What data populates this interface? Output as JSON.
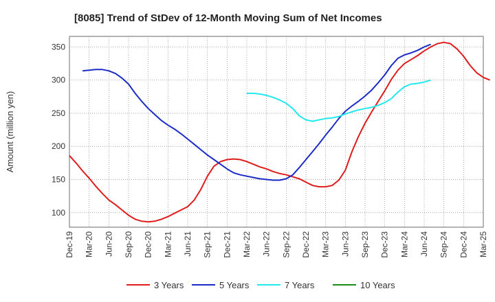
{
  "chart_data": {
    "type": "line",
    "title": "[8085]  Trend of StDev of 12-Month Moving Sum of Net Incomes",
    "ylabel": "Amount (million yen)",
    "xlabel": "",
    "ylim": [
      78,
      366
    ],
    "yticks": [
      100,
      150,
      200,
      250,
      300,
      350
    ],
    "xticks": [
      "Dec-19",
      "Mar-20",
      "Jun-20",
      "Sep-20",
      "Dec-20",
      "Mar-21",
      "Jun-21",
      "Sep-21",
      "Dec-21",
      "Mar-22",
      "Jun-22",
      "Sep-22",
      "Dec-22",
      "Mar-23",
      "Jun-23",
      "Sep-23",
      "Dec-23",
      "Mar-24",
      "Jun-24",
      "Sep-24",
      "Dec-24",
      "Mar-25"
    ],
    "grid": true,
    "legend_position": "bottom",
    "series": [
      {
        "name": "3 Years",
        "color": "#e01b1b",
        "start_index": 0,
        "values": [
          186,
          175,
          163,
          152,
          140,
          129,
          119,
          112,
          104,
          96,
          90,
          87,
          86,
          87,
          90,
          94,
          99,
          104,
          109,
          119,
          135,
          155,
          170,
          177,
          180,
          181,
          180,
          177,
          173,
          169,
          166,
          162,
          159,
          157,
          154,
          151,
          146,
          141,
          139,
          139,
          141,
          149,
          164,
          192,
          215,
          235,
          252,
          268,
          284,
          301,
          315,
          325,
          331,
          337,
          344,
          350,
          355,
          357,
          355,
          347,
          336,
          322,
          311,
          304,
          300
        ],
        "note_marker": ""
      },
      {
        "name": "5 Years",
        "color": "#1a2bc8",
        "start_index": 2,
        "values": [
          314,
          315,
          316,
          316,
          314,
          310,
          303,
          294,
          280,
          268,
          257,
          248,
          239,
          232,
          226,
          219,
          211,
          203,
          195,
          187,
          180,
          173,
          166,
          160,
          157,
          155,
          153,
          151,
          150,
          149,
          149,
          151,
          157,
          168,
          180,
          192,
          204,
          217,
          229,
          242,
          253,
          261,
          268,
          276,
          285,
          296,
          308,
          322,
          333,
          338,
          341,
          345,
          350,
          354
        ]
      },
      {
        "name": "7 Years",
        "color": "#22e8ee",
        "start_index": 27,
        "values": [
          280,
          280,
          279,
          277,
          274,
          270,
          265,
          257,
          246,
          240,
          238,
          240,
          242,
          243,
          245,
          249,
          252,
          255,
          257,
          259,
          262,
          266,
          272,
          282,
          290,
          294,
          295,
          297,
          300
        ]
      },
      {
        "name": "10 Years",
        "color": "#1a8a1a",
        "start_index": 0,
        "values": []
      }
    ]
  }
}
